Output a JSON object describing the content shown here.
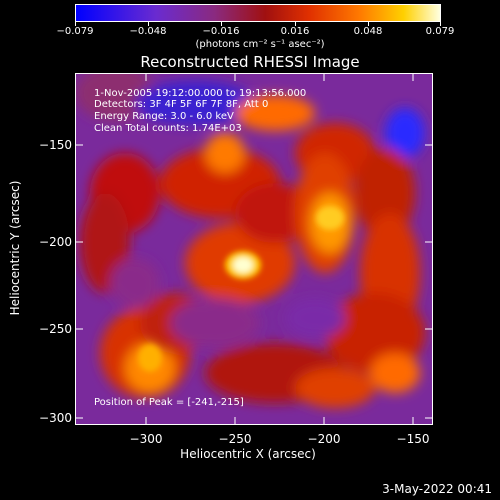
{
  "colorbar": {
    "ticks": [
      "−0.079",
      "−0.048",
      "−0.016",
      "0.016",
      "0.048",
      "0.079"
    ],
    "units": "(photons cm⁻² s⁻¹ asec⁻²)"
  },
  "title": "Reconstructed RHESSI Image",
  "info": {
    "time": "1-Nov-2005 19:12:00.000 to 19:13:56.000",
    "detectors": "Detectors: 3F 4F 5F 6F 7F 8F, Att 0",
    "energy": "Energy Range: 3.0 - 6.0 keV",
    "clean": "Clean     Total counts: 1.74E+03"
  },
  "peak": "Position of Peak = [-241,-215]",
  "axes": {
    "x_ticks": [
      "−300",
      "−250",
      "−200",
      "−150"
    ],
    "y_ticks": [
      "−150",
      "−200",
      "−250",
      "−300"
    ],
    "xlabel": "Heliocentric X (arcsec)",
    "ylabel": "Heliocentric Y (arcsec)"
  },
  "date": "3-May-2022 00:41",
  "colors": {
    "high": "#ffffe0",
    "mid": "#e03000",
    "low": "#6a2bd0",
    "min": "#0000ff"
  }
}
